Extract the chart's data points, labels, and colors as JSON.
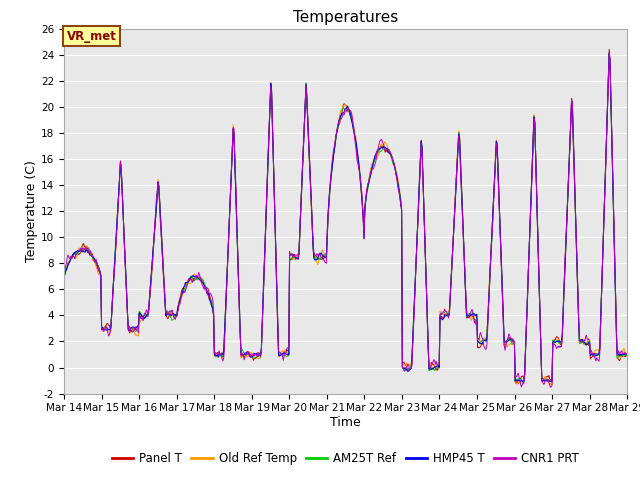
{
  "title": "Temperatures",
  "xlabel": "Time",
  "ylabel": "Temperature (C)",
  "ylim": [
    -2,
    26
  ],
  "x_tick_labels": [
    "Mar 14",
    "Mar 15",
    "Mar 16",
    "Mar 17",
    "Mar 18",
    "Mar 19",
    "Mar 20",
    "Mar 21",
    "Mar 22",
    "Mar 23",
    "Mar 24",
    "Mar 25",
    "Mar 26",
    "Mar 27",
    "Mar 28",
    "Mar 29"
  ],
  "annotation_text": "VR_met",
  "annotation_color": "#8B0000",
  "annotation_bg": "#FFFF99",
  "annotation_border": "#8B4513",
  "series_colors": {
    "Panel T": "#CC0000",
    "Old Ref Temp": "#FF9900",
    "AM25T Ref": "#00CC00",
    "HMP45 T": "#0000EE",
    "CNR1 PRT": "#BB00BB"
  },
  "background_color": "#E8E8E8",
  "title_fontsize": 11,
  "axis_label_fontsize": 9,
  "tick_fontsize": 7.5,
  "legend_fontsize": 8.5,
  "figwidth": 6.4,
  "figheight": 4.8,
  "dpi": 100
}
